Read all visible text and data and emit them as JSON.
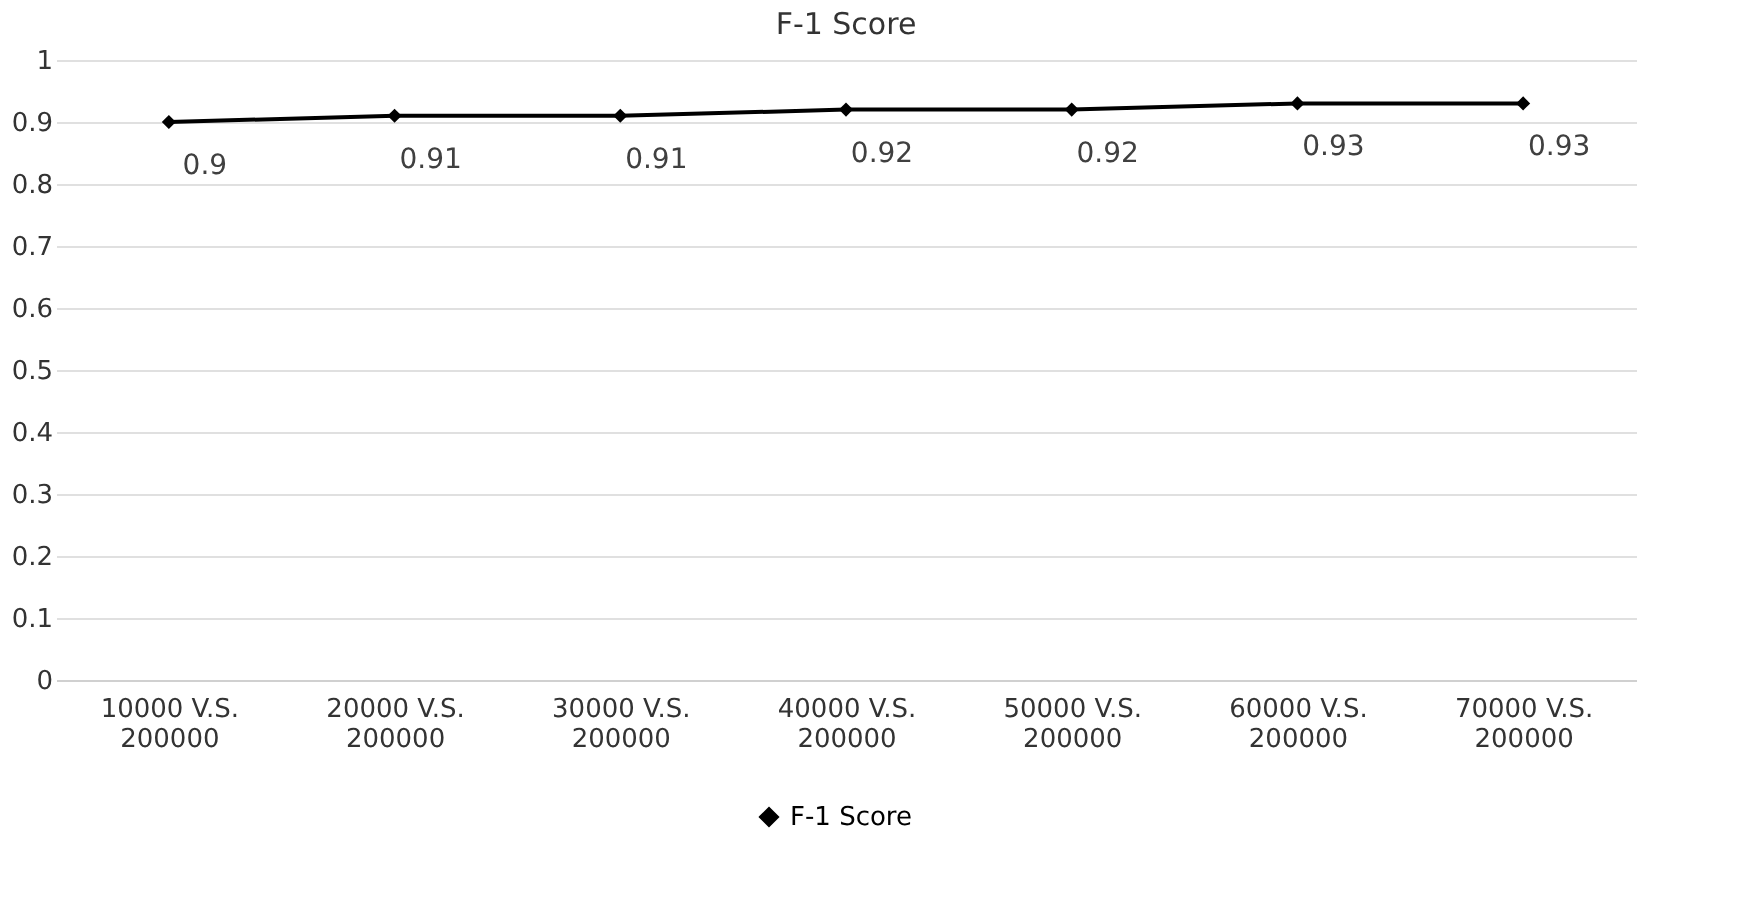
{
  "chart_data": {
    "type": "line",
    "title": "F-1 Score",
    "categories": [
      "10000 V.S.\n200000",
      "20000 V.S.\n200000",
      "30000 V.S.\n200000",
      "40000 V.S.\n200000",
      "50000 V.S.\n200000",
      "60000 V.S.\n200000",
      "70000 V.S.\n200000"
    ],
    "series": [
      {
        "name": "F-1 Score",
        "color": "#000000",
        "values": [
          0.9,
          0.91,
          0.91,
          0.92,
          0.92,
          0.93,
          0.93
        ]
      }
    ],
    "ylim": [
      0,
      1
    ],
    "yticks": [
      0,
      0.1,
      0.2,
      0.3,
      0.4,
      0.5,
      0.6,
      0.7,
      0.8,
      0.9,
      1
    ],
    "grid": "y",
    "legend": "bottom",
    "marker": "diamond",
    "line_style": "solid",
    "data_labels": true
  }
}
